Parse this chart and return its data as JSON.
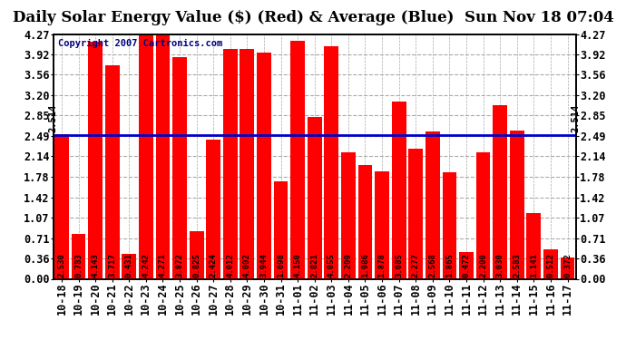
{
  "title": "Daily Solar Energy Value ($) (Red) & Average (Blue)  Sun Nov 18 07:04",
  "copyright": "Copyright 2007 Cartronics.com",
  "average": 2.514,
  "bar_color": "#ff0000",
  "avg_line_color": "#0000cc",
  "background_color": "#ffffff",
  "plot_bg_color": "#ffffff",
  "grid_color": "#aaaaaa",
  "categories": [
    "10-18",
    "10-19",
    "10-20",
    "10-21",
    "10-22",
    "10-23",
    "10-24",
    "10-25",
    "10-26",
    "10-27",
    "10-28",
    "10-29",
    "10-30",
    "10-31",
    "11-01",
    "11-02",
    "11-03",
    "11-04",
    "11-05",
    "11-06",
    "11-07",
    "11-08",
    "11-09",
    "11-10",
    "11-11",
    "11-12",
    "11-13",
    "11-14",
    "11-15",
    "11-16",
    "11-17"
  ],
  "values": [
    2.53,
    0.783,
    4.143,
    3.717,
    0.431,
    4.242,
    4.271,
    3.872,
    0.825,
    2.424,
    4.012,
    4.002,
    3.944,
    1.698,
    4.15,
    2.821,
    4.055,
    2.209,
    1.986,
    1.878,
    3.085,
    2.277,
    2.568,
    1.865,
    0.472,
    2.2,
    3.03,
    2.583,
    1.141,
    0.512,
    0.372
  ],
  "yticks": [
    0.0,
    0.36,
    0.71,
    1.07,
    1.42,
    1.78,
    2.14,
    2.49,
    2.85,
    3.2,
    3.56,
    3.92,
    4.27
  ],
  "ylim": [
    0,
    4.27
  ],
  "avg_label": "2.514",
  "title_fontsize": 12,
  "label_fontsize": 6.5,
  "tick_fontsize": 8.5,
  "copyright_fontsize": 7.5
}
